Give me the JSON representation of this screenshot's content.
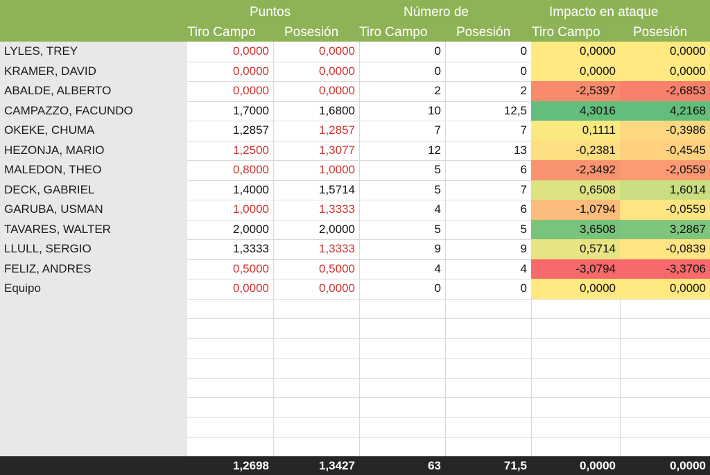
{
  "header": {
    "groups": [
      "Puntos",
      "Número de",
      "Impacto en ataque"
    ],
    "columns": [
      "Tiro Campo",
      "Posesión",
      "Tiro Campo",
      "Posesión",
      "Tiro Campo",
      "Posesión"
    ]
  },
  "rows": [
    {
      "name": "LYLES, TREY",
      "v": [
        "0,0000",
        "0,0000",
        "0",
        "0",
        "0,0000",
        "0,0000"
      ],
      "red": [
        true,
        true
      ],
      "bg": [
        "#ffe980",
        "#ffe980"
      ]
    },
    {
      "name": "KRAMER, DAVID",
      "v": [
        "0,0000",
        "0,0000",
        "0",
        "0",
        "0,0000",
        "0,0000"
      ],
      "red": [
        true,
        true
      ],
      "bg": [
        "#ffe980",
        "#ffe980"
      ]
    },
    {
      "name": "ABALDE, ALBERTO",
      "v": [
        "0,0000",
        "0,0000",
        "2",
        "2",
        "-2,5397",
        "-2,6853"
      ],
      "red": [
        true,
        true
      ],
      "bg": [
        "#f98a6e",
        "#f8806c"
      ]
    },
    {
      "name": "CAMPAZZO, FACUNDO",
      "v": [
        "1,7000",
        "1,6800",
        "10",
        "12,5",
        "4,3016",
        "4,2168"
      ],
      "red": [
        false,
        false
      ],
      "bg": [
        "#63be7b",
        "#63be7b"
      ]
    },
    {
      "name": "OKEKE, CHUMA",
      "v": [
        "1,2857",
        "1,2857",
        "7",
        "7",
        "0,1111",
        "-0,3986"
      ],
      "red": [
        false,
        true
      ],
      "bg": [
        "#fae881",
        "#fed880"
      ]
    },
    {
      "name": "HEZONJA, MARIO",
      "v": [
        "1,2500",
        "1,3077",
        "12",
        "13",
        "-0,2381",
        "-0,4545"
      ],
      "red": [
        true,
        true
      ],
      "bg": [
        "#fede81",
        "#fdd17f"
      ]
    },
    {
      "name": "MALEDON, THEO",
      "v": [
        "0,8000",
        "1,0000",
        "5",
        "6",
        "-2,3492",
        "-2,0559"
      ],
      "red": [
        true,
        true
      ],
      "bg": [
        "#fa9370",
        "#fb9a73"
      ]
    },
    {
      "name": "DECK, GABRIEL",
      "v": [
        "1,4000",
        "1,5714",
        "5",
        "7",
        "0,6508",
        "1,6014"
      ],
      "red": [
        false,
        false
      ],
      "bg": [
        "#dde283",
        "#c9dd81"
      ]
    },
    {
      "name": "GARUBA, USMAN",
      "v": [
        "1,0000",
        "1,3333",
        "4",
        "6",
        "-1,0794",
        "-0,0559"
      ],
      "red": [
        true,
        true
      ],
      "bg": [
        "#fcbc7b",
        "#fee582"
      ]
    },
    {
      "name": "TAVARES, WALTER",
      "v": [
        "2,0000",
        "2,0000",
        "5",
        "5",
        "3,6508",
        "3,2867"
      ],
      "red": [
        false,
        false
      ],
      "bg": [
        "#78c47c",
        "#7fc67d"
      ]
    },
    {
      "name": "LLULL, SERGIO",
      "v": [
        "1,3333",
        "1,3333",
        "9",
        "9",
        "0,5714",
        "-0,0839"
      ],
      "red": [
        false,
        true
      ],
      "bg": [
        "#e6e483",
        "#fee482"
      ]
    },
    {
      "name": "FELIZ, ANDRES",
      "v": [
        "0,5000",
        "0,5000",
        "4",
        "4",
        "-3,0794",
        "-3,3706"
      ],
      "red": [
        true,
        true
      ],
      "bg": [
        "#f8696b",
        "#f8696b"
      ]
    },
    {
      "name": "Equipo",
      "v": [
        "0,0000",
        "0,0000",
        "0",
        "0",
        "0,0000",
        "0,0000"
      ],
      "red": [
        true,
        true
      ],
      "bg": [
        "#ffe980",
        "#ffe980"
      ]
    }
  ],
  "totals": [
    "1,2698",
    "1,3427",
    "63",
    "71,5",
    "0,0000",
    "0,0000"
  ]
}
